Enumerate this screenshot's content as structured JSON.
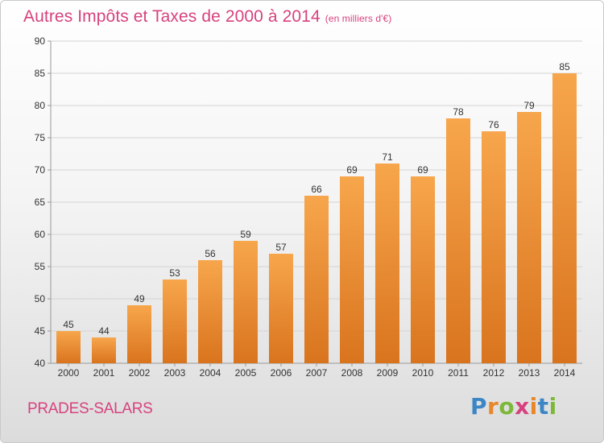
{
  "header": {
    "title": "Autres Impôts et Taxes de 2000 à 2014",
    "unit": "(en milliers d'€)"
  },
  "footer": {
    "place": "PRADES-SALARS",
    "logo": "Proxiti"
  },
  "colors": {
    "accent": "#d7427e",
    "bar_top": "#f7a64c",
    "bar_bottom": "#d9741e"
  },
  "chart_data": {
    "type": "bar",
    "title": "Autres Impôts et Taxes de 2000 à 2014",
    "subtitle": "(en milliers d'€)",
    "xlabel": "",
    "ylabel": "",
    "categories": [
      "2000",
      "2001",
      "2002",
      "2003",
      "2004",
      "2005",
      "2006",
      "2007",
      "2008",
      "2009",
      "2010",
      "2011",
      "2012",
      "2013",
      "2014"
    ],
    "values": [
      45,
      44,
      49,
      53,
      56,
      59,
      57,
      66,
      69,
      71,
      69,
      78,
      76,
      79,
      85
    ],
    "ylim": [
      40,
      90
    ],
    "yticks": [
      40,
      45,
      50,
      55,
      60,
      65,
      70,
      75,
      80,
      85,
      90
    ],
    "grid": true,
    "legend": "none"
  }
}
